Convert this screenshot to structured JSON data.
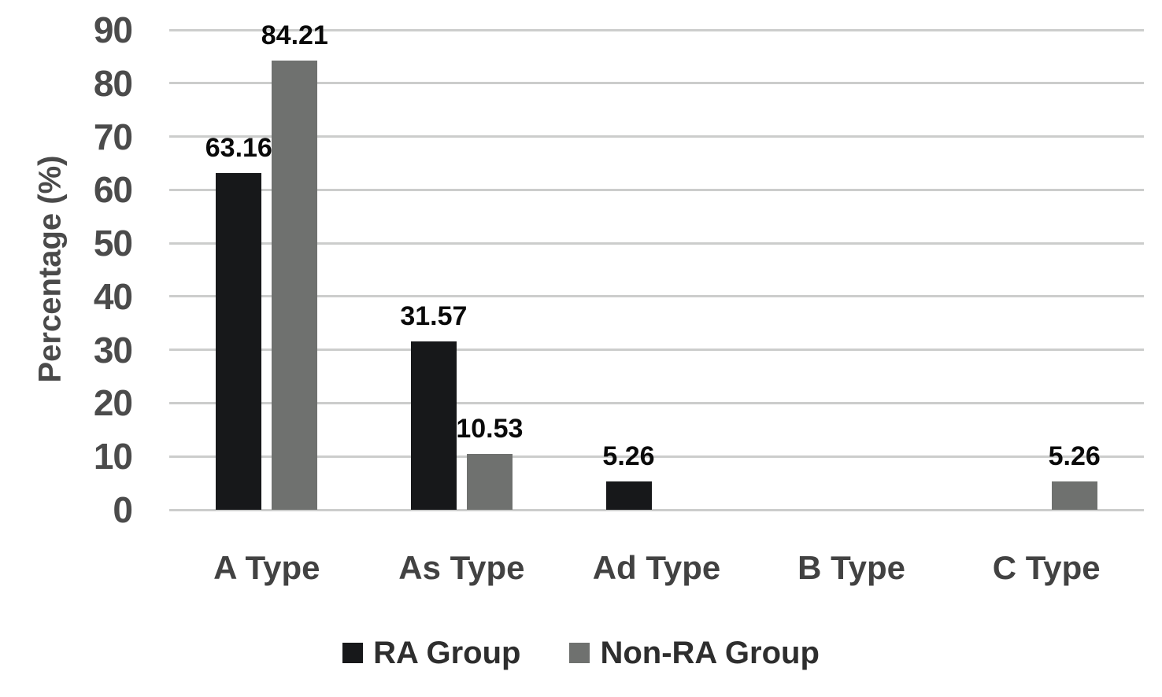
{
  "chart_data": {
    "type": "bar",
    "title": "",
    "categories": [
      "A Type",
      "As Type",
      "Ad Type",
      "B Type",
      "C Type"
    ],
    "series": [
      {
        "name": "RA Group",
        "color": "#17181a",
        "values": [
          63.16,
          31.57,
          5.26,
          0,
          0
        ],
        "labels": [
          "63.16",
          "31.57",
          "5.26",
          "",
          ""
        ]
      },
      {
        "name": "Non-RA Group",
        "color": "#6f716f",
        "values": [
          84.21,
          10.53,
          0,
          0,
          5.26
        ],
        "labels": [
          "84.21",
          "10.53",
          "",
          "",
          "5.26"
        ]
      }
    ],
    "xlabel": "",
    "ylabel": "Percentage (%)",
    "ylim": [
      0,
      90
    ],
    "yticks": [
      0,
      10,
      20,
      30,
      40,
      50,
      60,
      70,
      80,
      90
    ],
    "grid": "horizontal",
    "legend_position": "bottom",
    "data_labels_shown": true
  },
  "colors": {
    "background": "#ffffff",
    "gridline": "#cccdcc",
    "tick_label": "#4b4b4b",
    "axis_title": "#4a4a4a",
    "category_label": "#424242",
    "data_label": "#0a0a0a",
    "legend_text": "#2e2e2e"
  }
}
